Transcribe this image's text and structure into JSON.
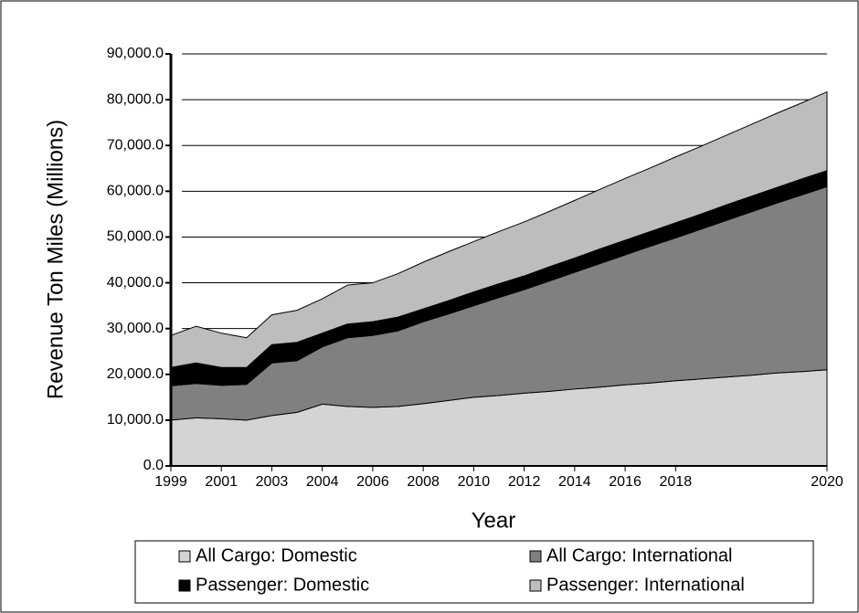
{
  "chart_data": {
    "type": "stacked_area",
    "x_label": "Year",
    "y_label": "Revenue Ton Miles (Millions)",
    "categories": [
      "1999",
      null,
      "2001",
      null,
      "2003",
      null,
      "2004",
      null,
      "2006",
      null,
      "2008",
      null,
      "2010",
      null,
      "2012",
      null,
      "2014",
      null,
      "2016",
      null,
      "2018",
      null,
      null,
      null,
      null,
      null,
      "2020"
    ],
    "series": [
      {
        "name": "All Cargo: Domestic",
        "color": "#d4d4d4",
        "values": [
          10000,
          10500,
          10300,
          10000,
          11000,
          11700,
          13500,
          13000,
          12800,
          13000,
          13600,
          14300,
          15000,
          15400,
          15900,
          16300,
          16800,
          17200,
          17700,
          18100,
          18600,
          19000,
          19400,
          19800,
          20300,
          20600,
          21000
        ]
      },
      {
        "name": "All Cargo: International",
        "color": "#808080",
        "values": [
          7500,
          7500,
          7300,
          7800,
          11500,
          11300,
          12500,
          15000,
          15700,
          16500,
          17900,
          18900,
          20000,
          21400,
          22600,
          24100,
          25500,
          27000,
          28400,
          29900,
          31200,
          32700,
          34200,
          35700,
          37100,
          38600,
          40000
        ]
      },
      {
        "name": "Passenger: Domestic",
        "color": "#000000",
        "values": [
          4000,
          4500,
          3900,
          3700,
          4000,
          4000,
          3000,
          3000,
          3000,
          3000,
          2800,
          2900,
          3000,
          3000,
          3000,
          3100,
          3100,
          3200,
          3200,
          3200,
          3300,
          3300,
          3400,
          3400,
          3400,
          3500,
          3500
        ]
      },
      {
        "name": "Passenger: International",
        "color": "#bdbdbd",
        "values": [
          7000,
          8000,
          7500,
          6500,
          6500,
          7000,
          7500,
          8500,
          8500,
          9500,
          10200,
          10700,
          11000,
          11400,
          11800,
          12100,
          12600,
          13000,
          13500,
          13900,
          14400,
          14800,
          15200,
          15700,
          16200,
          16600,
          17200
        ]
      }
    ],
    "ylim": [
      0,
      90000
    ],
    "yticks": [
      {
        "value": 0,
        "label": "0.0"
      },
      {
        "value": 10000,
        "label": "10,000.0"
      },
      {
        "value": 20000,
        "label": "20,000.0"
      },
      {
        "value": 30000,
        "label": "30,000.0"
      },
      {
        "value": 40000,
        "label": "40,000.0"
      },
      {
        "value": 50000,
        "label": "50,000.0"
      },
      {
        "value": 60000,
        "label": "60,000.0"
      },
      {
        "value": 70000,
        "label": "70,000.0"
      },
      {
        "value": 80000,
        "label": "80,000.0"
      },
      {
        "value": 90000,
        "label": "90,000.0"
      }
    ],
    "grid": true
  }
}
